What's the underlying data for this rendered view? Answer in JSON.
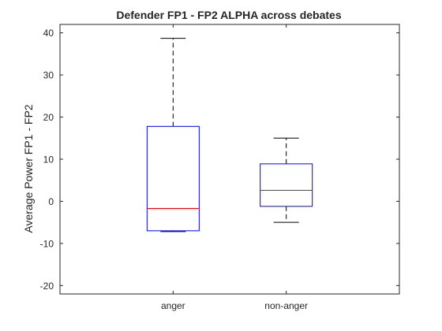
{
  "chart_data": {
    "type": "box",
    "title": "Defender FP1 - FP2 ALPHA across debates",
    "xlabel": "",
    "ylabel": "Average Power FP1 - FP2",
    "categories": [
      "anger",
      "non-anger"
    ],
    "ylim": [
      -22,
      42
    ],
    "yticks": [
      -20,
      -10,
      0,
      10,
      20,
      30,
      40
    ],
    "ytick_labels": [
      "-20",
      "-10",
      "0",
      "10",
      "20",
      "30",
      "40"
    ],
    "grid": false,
    "legend": "none",
    "boxes": [
      {
        "category": "anger",
        "whisker_low": -7.2,
        "q1": -7.0,
        "median": -1.7,
        "q3": 17.8,
        "whisker_high": 38.7
      },
      {
        "category": "non-anger",
        "whisker_low": -5.0,
        "q1": -1.2,
        "median": 2.6,
        "q3": 8.9,
        "whisker_high": 15.0
      }
    ],
    "colors": {
      "box": "#0000ff",
      "median": "#ff0000",
      "whisker": "#000000",
      "axis": "#262626"
    }
  }
}
